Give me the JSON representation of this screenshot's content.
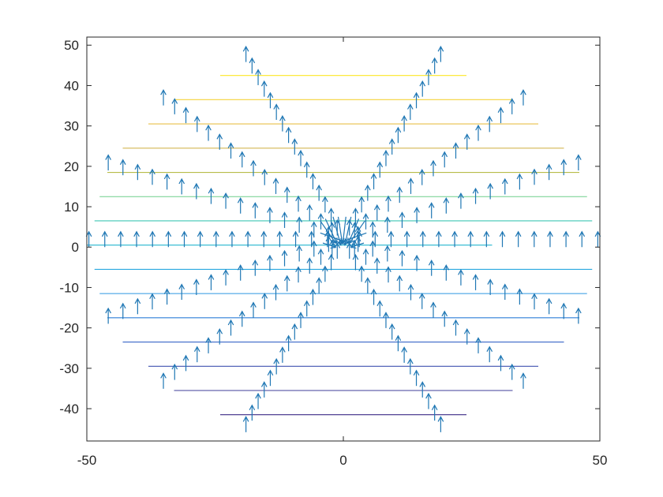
{
  "chart_data": {
    "type": "quiver-contour",
    "title": "",
    "xlabel": "",
    "ylabel": "",
    "xlim": [
      -50,
      50
    ],
    "ylim": [
      -48,
      52
    ],
    "grid": false,
    "legend": "none",
    "x_ticks": [
      -50,
      0,
      50
    ],
    "x_tick_labels": [
      "-50",
      "0",
      "50"
    ],
    "y_ticks": [
      -40,
      -30,
      -20,
      -10,
      0,
      10,
      20,
      30,
      40,
      50
    ],
    "y_tick_labels": [
      "-40",
      "-30",
      "-20",
      "-10",
      "0",
      "10",
      "20",
      "30",
      "40",
      "50"
    ],
    "contour_levels": [
      {
        "y": 42.5,
        "x_range": [
          -24,
          24
        ],
        "color": "#fde725"
      },
      {
        "y": 36.5,
        "x_range": [
          -33,
          33
        ],
        "color": "#f5d23a"
      },
      {
        "y": 30.5,
        "x_range": [
          -38,
          38
        ],
        "color": "#e8c04a"
      },
      {
        "y": 24.5,
        "x_range": [
          -43,
          43
        ],
        "color": "#d4b553"
      },
      {
        "y": 18.5,
        "x_range": [
          -46,
          46
        ],
        "color": "#b8bd4a"
      },
      {
        "y": 12.5,
        "x_range": [
          -47.5,
          47.5
        ],
        "color": "#6fcf8a"
      },
      {
        "y": 6.5,
        "x_range": [
          -48.5,
          48.5
        ],
        "color": "#3fc6b4"
      },
      {
        "y": 0.5,
        "x_range": [
          -50,
          29
        ],
        "color": "#26b6cf"
      },
      {
        "y": -5.5,
        "x_range": [
          -48.5,
          48.5
        ],
        "color": "#2aa8e0"
      },
      {
        "y": -11.5,
        "x_range": [
          -47.5,
          47.5
        ],
        "color": "#2c98e2"
      },
      {
        "y": -17.5,
        "x_range": [
          -46,
          46
        ],
        "color": "#2e7fd8"
      },
      {
        "y": -23.5,
        "x_range": [
          -43,
          43
        ],
        "color": "#3a66c8"
      },
      {
        "y": -29.5,
        "x_range": [
          -38,
          38
        ],
        "color": "#4053b0"
      },
      {
        "y": -35.5,
        "x_range": [
          -33,
          33
        ],
        "color": "#3f3e9a"
      },
      {
        "y": -41.5,
        "x_range": [
          -24,
          24
        ],
        "color": "#3b2a86"
      }
    ],
    "quiver_rays_deg": [
      0,
      22.5,
      45,
      67.5,
      112.5,
      135,
      157.5,
      180,
      202.5,
      225,
      247.5,
      292.5,
      315,
      337.5
    ],
    "quiver_spacing": 3.1,
    "quiver_max_radius": 52,
    "quiver_vector": [
      0,
      1
    ],
    "quiver_center_cluster": [
      [
        -4.5,
        6.5,
        3.0,
        -5.5
      ],
      [
        -3.5,
        7.0,
        2.2,
        -6.0
      ],
      [
        -2.0,
        7.5,
        1.5,
        -7.0
      ],
      [
        -1.0,
        7.5,
        0.8,
        -6.5
      ],
      [
        0.5,
        7.5,
        -0.6,
        -6.5
      ],
      [
        1.5,
        7.5,
        -1.2,
        -7.0
      ],
      [
        3.0,
        7.0,
        -2.0,
        -6.0
      ],
      [
        4.2,
        6.5,
        -3.0,
        -5.5
      ],
      [
        -4.5,
        3.5,
        5.5,
        -2.5
      ],
      [
        4.5,
        3.5,
        -5.5,
        -2.5
      ],
      [
        -4.0,
        1.0,
        2.5,
        -1.0
      ],
      [
        4.0,
        1.0,
        -2.5,
        -1.0
      ]
    ],
    "arrow_color": "#1f77b4",
    "axis_color": "#262626"
  }
}
